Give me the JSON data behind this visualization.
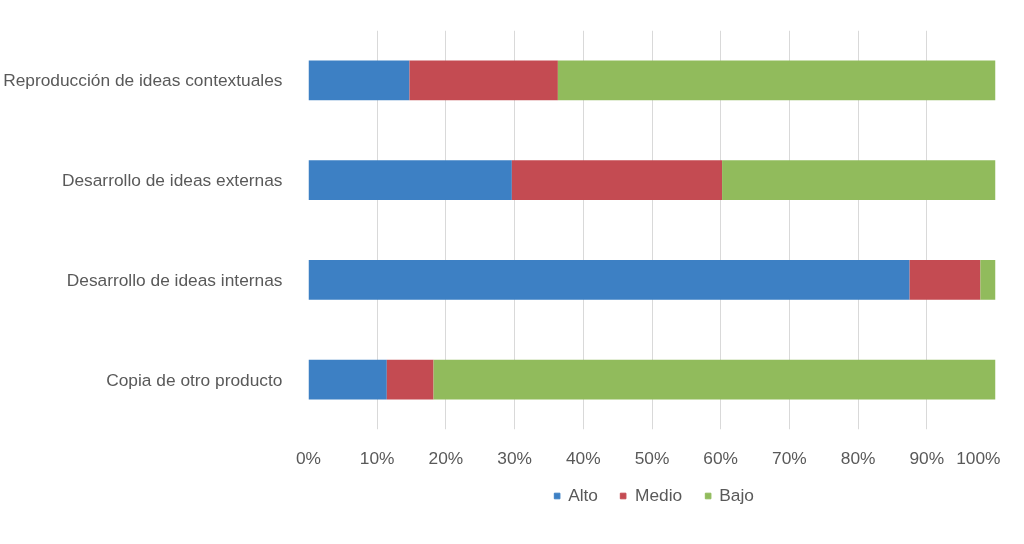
{
  "chart_data": {
    "type": "bar",
    "orientation": "horizontal",
    "stacked": true,
    "categories": [
      "Reproducción de ideas contextuales",
      "Desarrollo de ideas externas",
      "Desarrollo de ideas internas",
      "Copia de otro producto"
    ],
    "series": [
      {
        "name": "Alto",
        "color": "#3d80c4",
        "values": [
          14.7,
          29.6,
          87.5,
          11.4
        ]
      },
      {
        "name": "Medio",
        "color": "#c44b52",
        "values": [
          21.6,
          30.6,
          10.3,
          6.8
        ]
      },
      {
        "name": "Bajo",
        "color": "#91bb5c",
        "values": [
          63.7,
          39.8,
          2.2,
          81.8
        ]
      }
    ],
    "xlim": [
      0,
      100
    ],
    "xticks": [
      {
        "value": 0,
        "label": "0%"
      },
      {
        "value": 10,
        "label": "10%"
      },
      {
        "value": 20,
        "label": "20%"
      },
      {
        "value": 30,
        "label": "30%"
      },
      {
        "value": 40,
        "label": "40%"
      },
      {
        "value": 50,
        "label": "50%"
      },
      {
        "value": 60,
        "label": "60%"
      },
      {
        "value": 70,
        "label": "70%"
      },
      {
        "value": 80,
        "label": "80%"
      },
      {
        "value": 90,
        "label": "90%"
      },
      {
        "value": 100,
        "label": "100%"
      }
    ],
    "grid": "x",
    "legend": "bottom"
  }
}
